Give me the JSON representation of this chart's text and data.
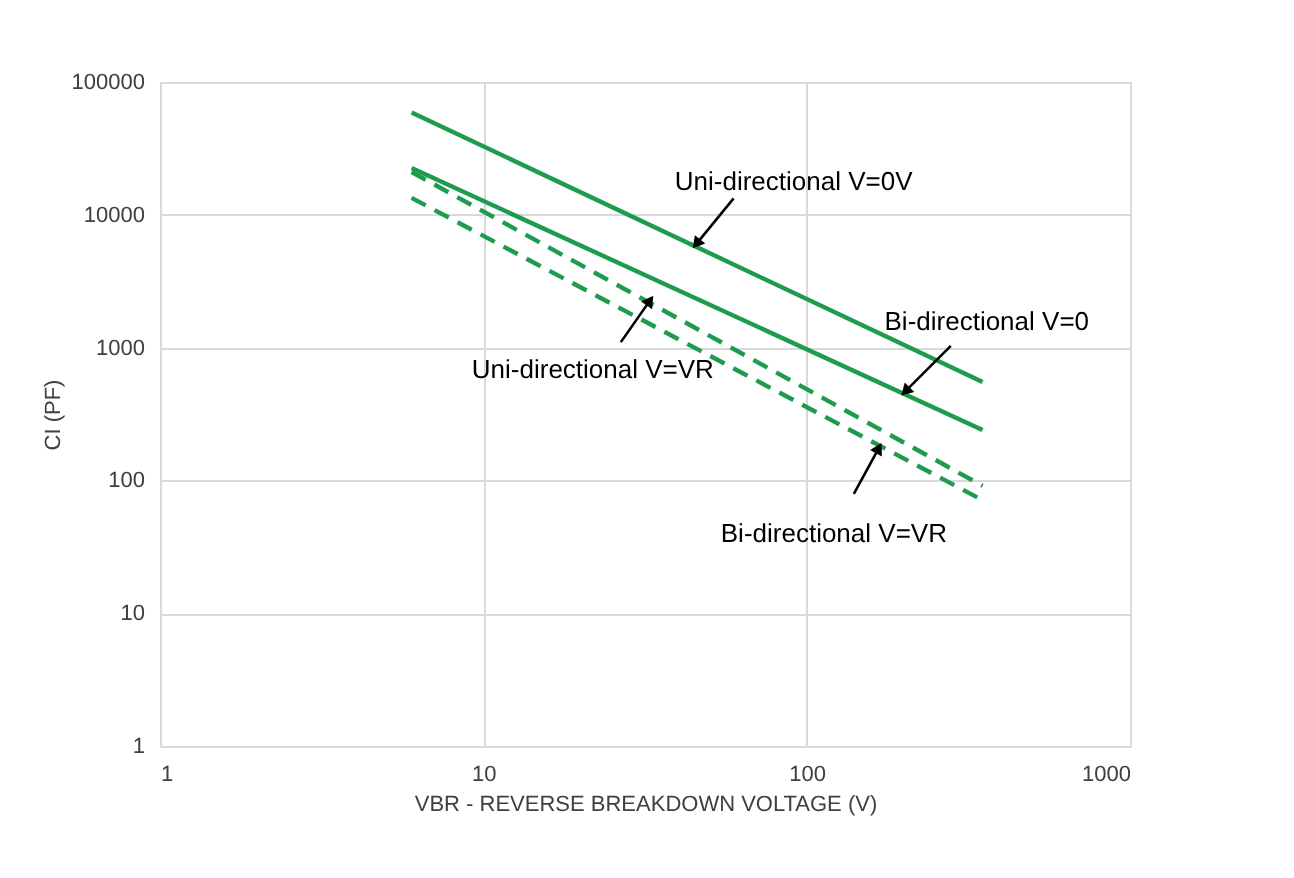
{
  "chart_data": {
    "type": "line",
    "xlabel": "VBR - REVERSE BREAKDOWN VOLTAGE (V)",
    "ylabel": "CI (PF)",
    "log": "xy",
    "grid": true,
    "x": [
      6,
      350
    ],
    "xlim": [
      1,
      1000
    ],
    "xticks": [
      1,
      10,
      100,
      1000
    ],
    "ylim": [
      1,
      100000
    ],
    "yticks": [
      1,
      10,
      100,
      1000,
      10000,
      100000
    ],
    "series": [
      {
        "color": "#1e9b4e",
        "line_style": "solid",
        "values": [
          59000,
          550
        ]
      },
      {
        "color": "#1e9b4e",
        "line_style": "solid",
        "values": [
          22500,
          240
        ]
      },
      {
        "color": "#1e9b4e",
        "line_style": "dashed",
        "values": [
          21000,
          91
        ]
      },
      {
        "color": "#1e9b4e",
        "line_style": "dashed",
        "values": [
          13400,
          71
        ]
      }
    ],
    "annotations": [
      {
        "text": "Uni-directional V=0V",
        "x": 46,
        "y": 6200
      },
      {
        "text": "Bi-directional V=0",
        "x": 204,
        "y": 480
      },
      {
        "text": "Uni-directional V=VR",
        "x": 32.5,
        "y": 2200
      },
      {
        "text": "Bi-directional V=VR",
        "x": 166,
        "y": 170
      }
    ]
  }
}
